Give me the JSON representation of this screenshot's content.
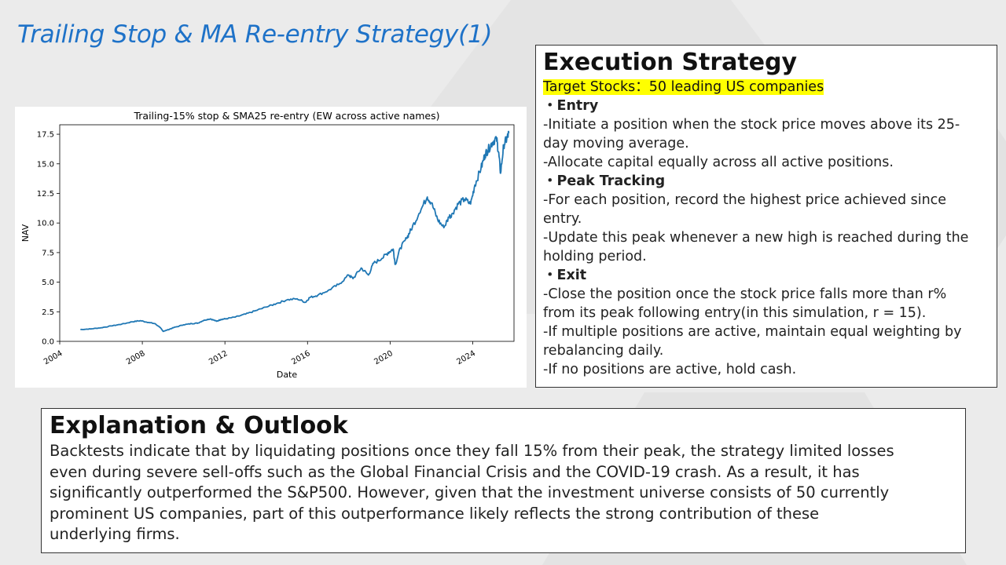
{
  "slide": {
    "title": "Trailing Stop & MA Re-entry Strategy(1)"
  },
  "execution": {
    "heading": "Execution Strategy",
    "target": "Target Stocks：50 leading US companies",
    "entry_title": "・Entry",
    "entry_lines": [
      "-Initiate a position when the stock price moves above its 25-",
      "day moving average.",
      "-Allocate capital equally across all active positions."
    ],
    "peak_title": "・Peak Tracking",
    "peak_lines": [
      "-For each position, record the highest price achieved since",
      "entry.",
      "-Update this peak whenever a new high is reached during the",
      "holding period."
    ],
    "exit_title": "・Exit",
    "exit_lines": [
      "-Close the position once the stock price falls more than r%",
      "from its peak following entry(in this simulation, r = 15).",
      "-If multiple positions are active, maintain equal weighting by",
      "rebalancing daily.",
      "-If no positions are active, hold cash."
    ]
  },
  "outlook": {
    "heading": "Explanation & Outlook",
    "lines": [
      "Backtests indicate that by liquidating positions once they fall 15% from their peak, the strategy limited losses",
      "even during severe sell-offs such as the Global Financial Crisis and the COVID-19 crash. As a result, it has",
      "significantly outperformed the S&P500. However, given that the investment universe consists of 50 currently",
      "prominent US companies, part of this outperformance likely reflects the strong contribution of these",
      "underlying firms."
    ]
  },
  "chart_data": {
    "type": "line",
    "title": "Trailing-15% stop & SMA25 re-entry (EW across active names)",
    "xlabel": "Date",
    "ylabel": "NAV",
    "xlim": [
      2004.0,
      2026.0
    ],
    "ylim": [
      0,
      18.3
    ],
    "x_ticks": [
      2004,
      2008,
      2012,
      2016,
      2020,
      2024
    ],
    "x_tick_labels": [
      "2004",
      "2008",
      "2012",
      "2016",
      "2020",
      "2024"
    ],
    "y_ticks": [
      0.0,
      2.5,
      5.0,
      7.5,
      10.0,
      12.5,
      15.0,
      17.5
    ],
    "y_tick_labels": [
      "0.0",
      "2.5",
      "5.0",
      "7.5",
      "10.0",
      "12.5",
      "15.0",
      "17.5"
    ],
    "grid": false,
    "line_color": "#1f77b4",
    "series": [
      {
        "x": [
          2005.0,
          2005.5,
          2006.0,
          2006.5,
          2007.0,
          2007.5,
          2007.9,
          2008.3,
          2008.6,
          2008.85,
          2009.0,
          2009.2,
          2009.5,
          2010.0,
          2010.4,
          2010.7,
          2011.0,
          2011.3,
          2011.6,
          2011.8,
          2012.0,
          2012.5,
          2013.0,
          2013.5,
          2014.0,
          2014.5,
          2015.0,
          2015.5,
          2015.9,
          2016.1,
          2016.5,
          2017.0,
          2017.5,
          2018.0,
          2018.2,
          2018.6,
          2018.95,
          2019.2,
          2019.6,
          2019.9,
          2020.15,
          2020.25,
          2020.5,
          2020.8,
          2021.0,
          2021.4,
          2021.8,
          2022.0,
          2022.3,
          2022.6,
          2022.85,
          2023.0,
          2023.3,
          2023.6,
          2023.9,
          2024.1,
          2024.4,
          2024.6,
          2024.75,
          2024.95,
          2025.15,
          2025.25,
          2025.35,
          2025.5,
          2025.65,
          2025.75
        ],
        "y": [
          1.0,
          1.05,
          1.15,
          1.3,
          1.45,
          1.65,
          1.75,
          1.6,
          1.5,
          1.2,
          0.85,
          0.95,
          1.15,
          1.4,
          1.5,
          1.55,
          1.8,
          1.9,
          1.7,
          1.85,
          1.9,
          2.05,
          2.3,
          2.6,
          2.9,
          3.2,
          3.5,
          3.6,
          3.3,
          3.7,
          3.9,
          4.3,
          4.8,
          5.6,
          5.3,
          6.2,
          5.6,
          6.6,
          7.0,
          7.5,
          7.8,
          6.5,
          7.9,
          8.7,
          9.4,
          10.8,
          12.2,
          11.7,
          10.3,
          9.6,
          10.5,
          10.8,
          11.6,
          12.0,
          11.6,
          13.2,
          14.6,
          15.8,
          16.2,
          16.8,
          17.2,
          16.0,
          14.2,
          16.6,
          17.1,
          17.6
        ]
      }
    ]
  }
}
